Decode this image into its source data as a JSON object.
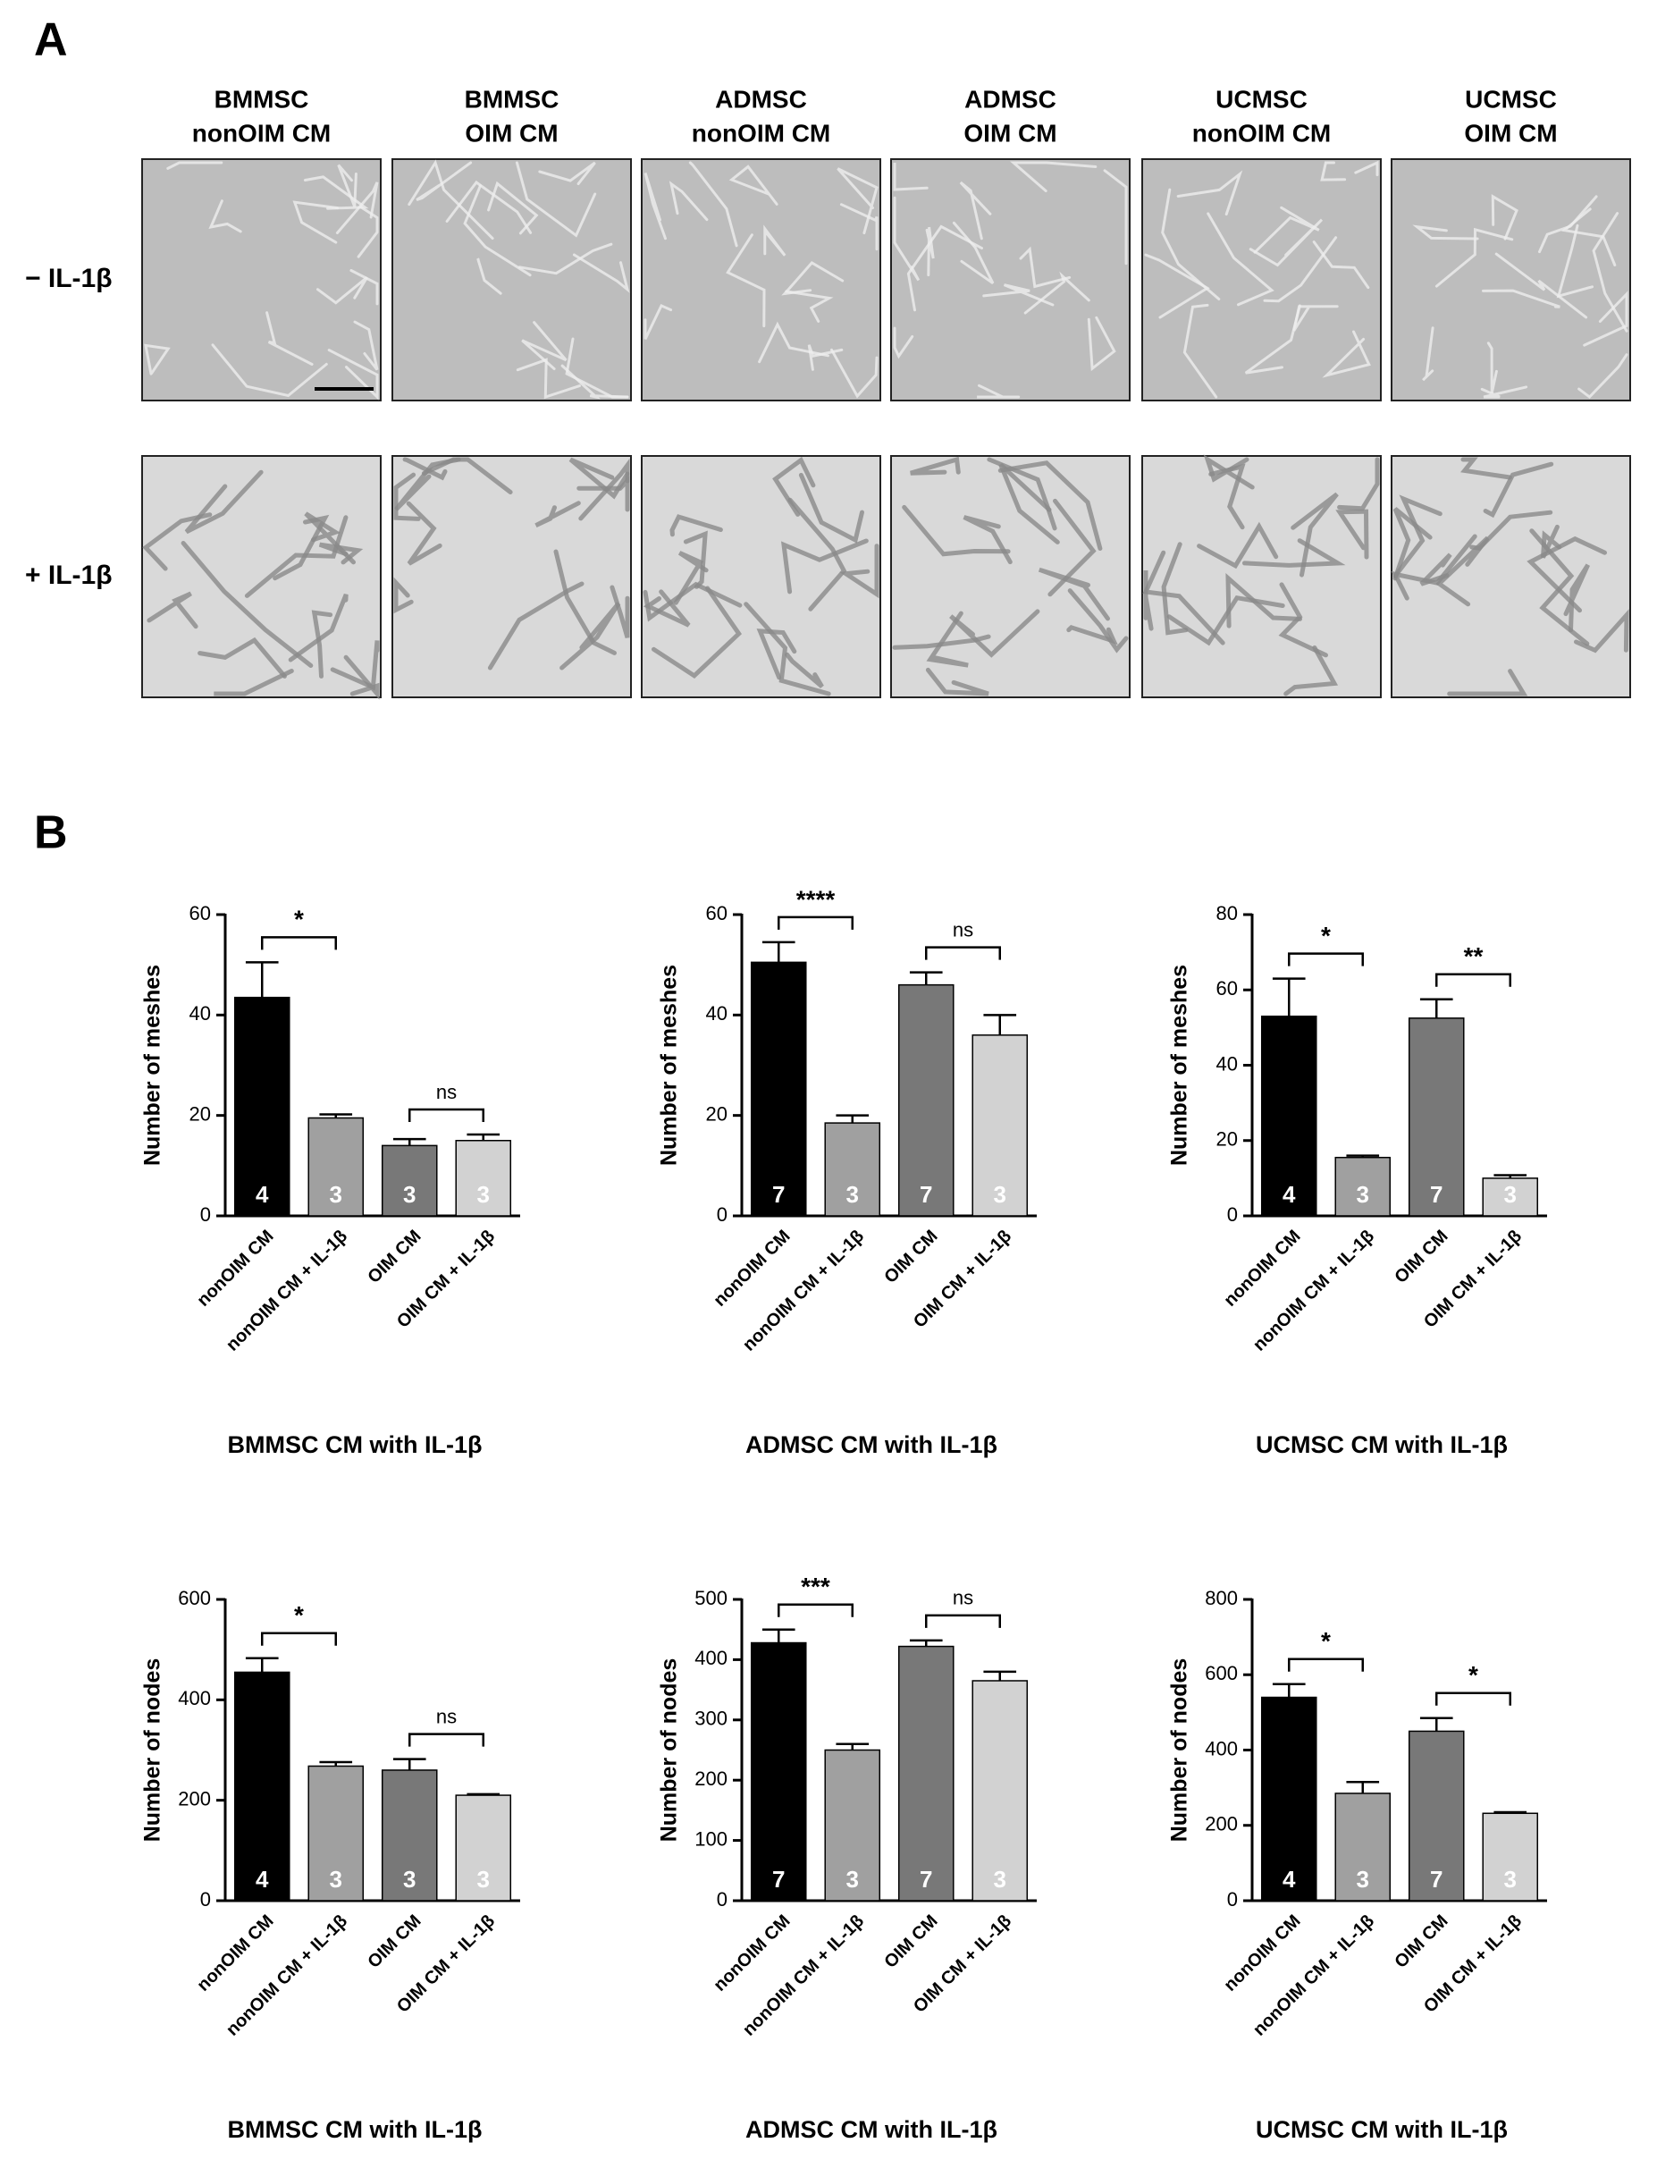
{
  "panel_a": {
    "label": "A",
    "columns": [
      [
        "BMMSC",
        "nonOIM CM"
      ],
      [
        "BMMSC",
        "OIM CM"
      ],
      [
        "ADMSC",
        "nonOIM CM"
      ],
      [
        "ADMSC",
        "OIM CM"
      ],
      [
        "UCMSC",
        "nonOIM CM"
      ],
      [
        "UCMSC",
        "OIM CM"
      ]
    ],
    "rows": [
      "− IL-1β",
      "+ IL-1β"
    ]
  },
  "panel_b": {
    "label": "B"
  },
  "chart_data": [
    {
      "type": "bar",
      "title": "BMMSC CM with IL-1β",
      "ylabel": "Number of meshes",
      "categories": [
        "nonOIM CM",
        "nonOIM CM + IL-1β",
        "OIM CM",
        "OIM CM + IL-1β"
      ],
      "values": [
        43.5,
        19.5,
        14,
        15
      ],
      "errors": [
        7,
        0.7,
        1.3,
        1.2
      ],
      "n": [
        4,
        3,
        3,
        3
      ],
      "colors": [
        "#000000",
        "#a0a0a0",
        "#787878",
        "#d2d2d2"
      ],
      "ylim": [
        0,
        60
      ],
      "yticks": [
        0,
        20,
        40,
        60
      ],
      "comparisons": [
        {
          "label": "*",
          "between": [
            "nonOIM CM",
            "nonOIM CM + IL-1β"
          ]
        },
        {
          "label": "ns",
          "between": [
            "OIM CM",
            "OIM CM + IL-1β"
          ]
        }
      ]
    },
    {
      "type": "bar",
      "title": "ADMSC CM with IL-1β",
      "ylabel": "Number of meshes",
      "categories": [
        "nonOIM CM",
        "nonOIM CM + IL-1β",
        "OIM CM",
        "OIM CM + IL-1β"
      ],
      "values": [
        50.5,
        18.5,
        46,
        36
      ],
      "errors": [
        4,
        1.5,
        2.5,
        4
      ],
      "n": [
        7,
        3,
        7,
        3
      ],
      "colors": [
        "#000000",
        "#a0a0a0",
        "#787878",
        "#d2d2d2"
      ],
      "ylim": [
        0,
        60
      ],
      "yticks": [
        0,
        20,
        40,
        60
      ],
      "comparisons": [
        {
          "label": "****",
          "between": [
            "nonOIM CM",
            "nonOIM CM + IL-1β"
          ]
        },
        {
          "label": "ns",
          "between": [
            "OIM CM",
            "OIM CM + IL-1β"
          ]
        }
      ]
    },
    {
      "type": "bar",
      "title": "UCMSC CM with IL-1β",
      "ylabel": "Number of meshes",
      "categories": [
        "nonOIM CM",
        "nonOIM CM + IL-1β",
        "OIM CM",
        "OIM CM + IL-1β"
      ],
      "values": [
        53,
        15.5,
        52.5,
        10
      ],
      "errors": [
        10,
        0.5,
        5,
        0.8
      ],
      "n": [
        4,
        3,
        7,
        3
      ],
      "colors": [
        "#000000",
        "#a0a0a0",
        "#787878",
        "#d2d2d2"
      ],
      "ylim": [
        0,
        80
      ],
      "yticks": [
        0,
        20,
        40,
        60,
        80
      ],
      "comparisons": [
        {
          "label": "*",
          "between": [
            "nonOIM CM",
            "nonOIM CM + IL-1β"
          ]
        },
        {
          "label": "**",
          "between": [
            "OIM CM",
            "OIM CM + IL-1β"
          ]
        }
      ]
    },
    {
      "type": "bar",
      "title": "BMMSC CM with IL-1β",
      "ylabel": "Number of nodes",
      "categories": [
        "nonOIM CM",
        "nonOIM CM + IL-1β",
        "OIM CM",
        "OIM CM + IL-1β"
      ],
      "values": [
        455,
        268,
        260,
        210
      ],
      "errors": [
        28,
        8,
        22,
        2
      ],
      "n": [
        4,
        3,
        3,
        3
      ],
      "colors": [
        "#000000",
        "#a0a0a0",
        "#787878",
        "#d2d2d2"
      ],
      "ylim": [
        0,
        600
      ],
      "yticks": [
        0,
        200,
        400,
        600
      ],
      "comparisons": [
        {
          "label": "*",
          "between": [
            "nonOIM CM",
            "nonOIM CM + IL-1β"
          ]
        },
        {
          "label": "ns",
          "between": [
            "OIM CM",
            "OIM CM + IL-1β"
          ]
        }
      ]
    },
    {
      "type": "bar",
      "title": "ADMSC CM with IL-1β",
      "ylabel": "Number of nodes",
      "categories": [
        "nonOIM CM",
        "nonOIM CM + IL-1β",
        "OIM CM",
        "OIM CM + IL-1β"
      ],
      "values": [
        428,
        250,
        422,
        365
      ],
      "errors": [
        22,
        10,
        10,
        15
      ],
      "n": [
        7,
        3,
        7,
        3
      ],
      "colors": [
        "#000000",
        "#a0a0a0",
        "#787878",
        "#d2d2d2"
      ],
      "ylim": [
        0,
        500
      ],
      "yticks": [
        0,
        100,
        200,
        300,
        400,
        500
      ],
      "comparisons": [
        {
          "label": "***",
          "between": [
            "nonOIM CM",
            "nonOIM CM + IL-1β"
          ]
        },
        {
          "label": "ns",
          "between": [
            "OIM CM",
            "OIM CM + IL-1β"
          ]
        }
      ]
    },
    {
      "type": "bar",
      "title": "UCMSC CM with IL-1β",
      "ylabel": "Number of nodes",
      "categories": [
        "nonOIM CM",
        "nonOIM CM + IL-1β",
        "OIM CM",
        "OIM CM + IL-1β"
      ],
      "values": [
        540,
        285,
        450,
        232
      ],
      "errors": [
        35,
        30,
        35,
        3
      ],
      "n": [
        4,
        3,
        7,
        3
      ],
      "colors": [
        "#000000",
        "#a0a0a0",
        "#787878",
        "#d2d2d2"
      ],
      "ylim": [
        0,
        800
      ],
      "yticks": [
        0,
        200,
        400,
        600,
        800
      ],
      "comparisons": [
        {
          "label": "*",
          "between": [
            "nonOIM CM",
            "nonOIM CM + IL-1β"
          ]
        },
        {
          "label": "*",
          "between": [
            "OIM CM",
            "OIM CM + IL-1β"
          ]
        }
      ]
    }
  ]
}
